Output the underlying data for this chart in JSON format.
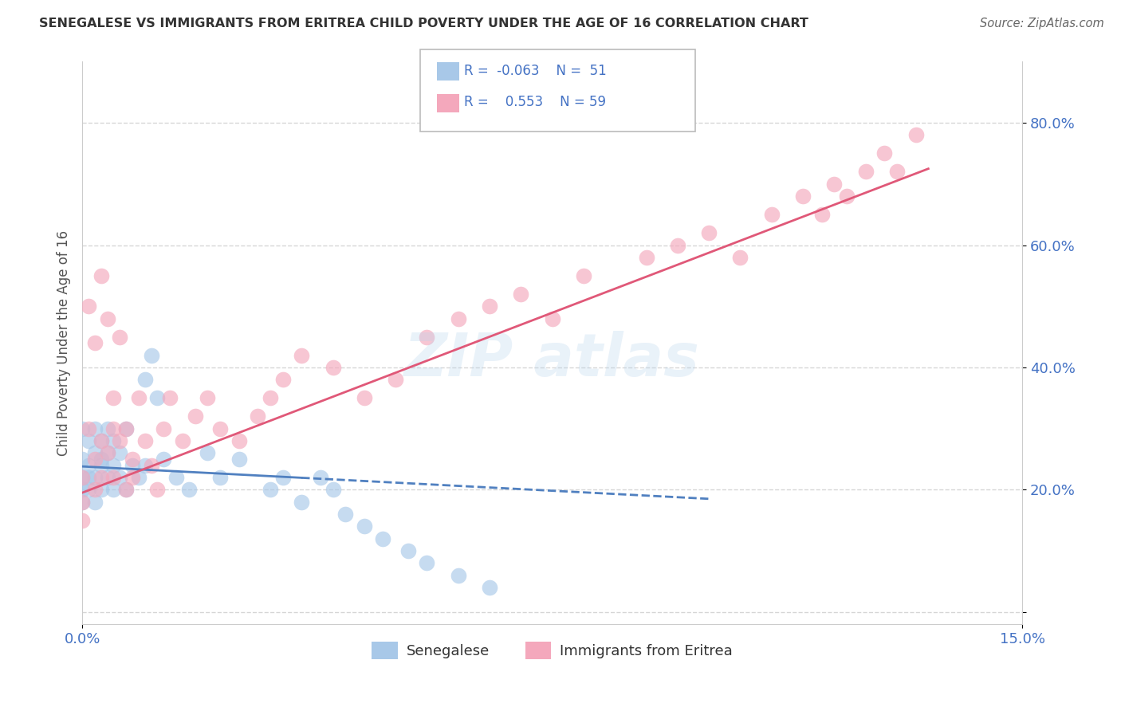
{
  "title": "SENEGALESE VS IMMIGRANTS FROM ERITREA CHILD POVERTY UNDER THE AGE OF 16 CORRELATION CHART",
  "source": "Source: ZipAtlas.com",
  "ylabel": "Child Poverty Under the Age of 16",
  "xlim": [
    0.0,
    0.15
  ],
  "ylim": [
    -0.02,
    0.9
  ],
  "ytick_values": [
    0.0,
    0.2,
    0.4,
    0.6,
    0.8
  ],
  "color_blue": "#a8c8e8",
  "color_pink": "#f4a8bc",
  "color_blue_line": "#5080c0",
  "color_pink_line": "#e05878",
  "watermark_text": "ZIPatlas",
  "sen_line_x": [
    0.0,
    0.1
  ],
  "sen_line_y": [
    0.238,
    0.185
  ],
  "eri_line_x": [
    0.0,
    0.135
  ],
  "eri_line_y": [
    0.195,
    0.725
  ],
  "senegalese_x": [
    0.0,
    0.0,
    0.0,
    0.0,
    0.0,
    0.001,
    0.001,
    0.001,
    0.001,
    0.002,
    0.002,
    0.002,
    0.002,
    0.003,
    0.003,
    0.003,
    0.003,
    0.004,
    0.004,
    0.004,
    0.005,
    0.005,
    0.005,
    0.006,
    0.006,
    0.007,
    0.007,
    0.008,
    0.009,
    0.01,
    0.01,
    0.011,
    0.012,
    0.013,
    0.015,
    0.017,
    0.02,
    0.022,
    0.025,
    0.03,
    0.032,
    0.035,
    0.038,
    0.04,
    0.042,
    0.045,
    0.048,
    0.052,
    0.055,
    0.06,
    0.065
  ],
  "senegalese_y": [
    0.22,
    0.25,
    0.2,
    0.18,
    0.3,
    0.24,
    0.28,
    0.22,
    0.2,
    0.26,
    0.3,
    0.22,
    0.18,
    0.25,
    0.28,
    0.2,
    0.24,
    0.3,
    0.22,
    0.26,
    0.28,
    0.2,
    0.24,
    0.26,
    0.22,
    0.3,
    0.2,
    0.24,
    0.22,
    0.38,
    0.24,
    0.42,
    0.35,
    0.25,
    0.22,
    0.2,
    0.26,
    0.22,
    0.25,
    0.2,
    0.22,
    0.18,
    0.22,
    0.2,
    0.16,
    0.14,
    0.12,
    0.1,
    0.08,
    0.06,
    0.04
  ],
  "eritrea_x": [
    0.0,
    0.0,
    0.0,
    0.001,
    0.001,
    0.002,
    0.002,
    0.002,
    0.003,
    0.003,
    0.003,
    0.004,
    0.004,
    0.005,
    0.005,
    0.005,
    0.006,
    0.006,
    0.007,
    0.007,
    0.008,
    0.008,
    0.009,
    0.01,
    0.011,
    0.012,
    0.013,
    0.014,
    0.016,
    0.018,
    0.02,
    0.022,
    0.025,
    0.028,
    0.03,
    0.032,
    0.035,
    0.04,
    0.045,
    0.05,
    0.055,
    0.06,
    0.065,
    0.07,
    0.075,
    0.08,
    0.09,
    0.095,
    0.1,
    0.105,
    0.11,
    0.115,
    0.118,
    0.12,
    0.122,
    0.125,
    0.128,
    0.13,
    0.133
  ],
  "eritrea_y": [
    0.22,
    0.18,
    0.15,
    0.5,
    0.3,
    0.2,
    0.25,
    0.44,
    0.22,
    0.28,
    0.55,
    0.26,
    0.48,
    0.22,
    0.3,
    0.35,
    0.28,
    0.45,
    0.2,
    0.3,
    0.25,
    0.22,
    0.35,
    0.28,
    0.24,
    0.2,
    0.3,
    0.35,
    0.28,
    0.32,
    0.35,
    0.3,
    0.28,
    0.32,
    0.35,
    0.38,
    0.42,
    0.4,
    0.35,
    0.38,
    0.45,
    0.48,
    0.5,
    0.52,
    0.48,
    0.55,
    0.58,
    0.6,
    0.62,
    0.58,
    0.65,
    0.68,
    0.65,
    0.7,
    0.68,
    0.72,
    0.75,
    0.72,
    0.78
  ]
}
